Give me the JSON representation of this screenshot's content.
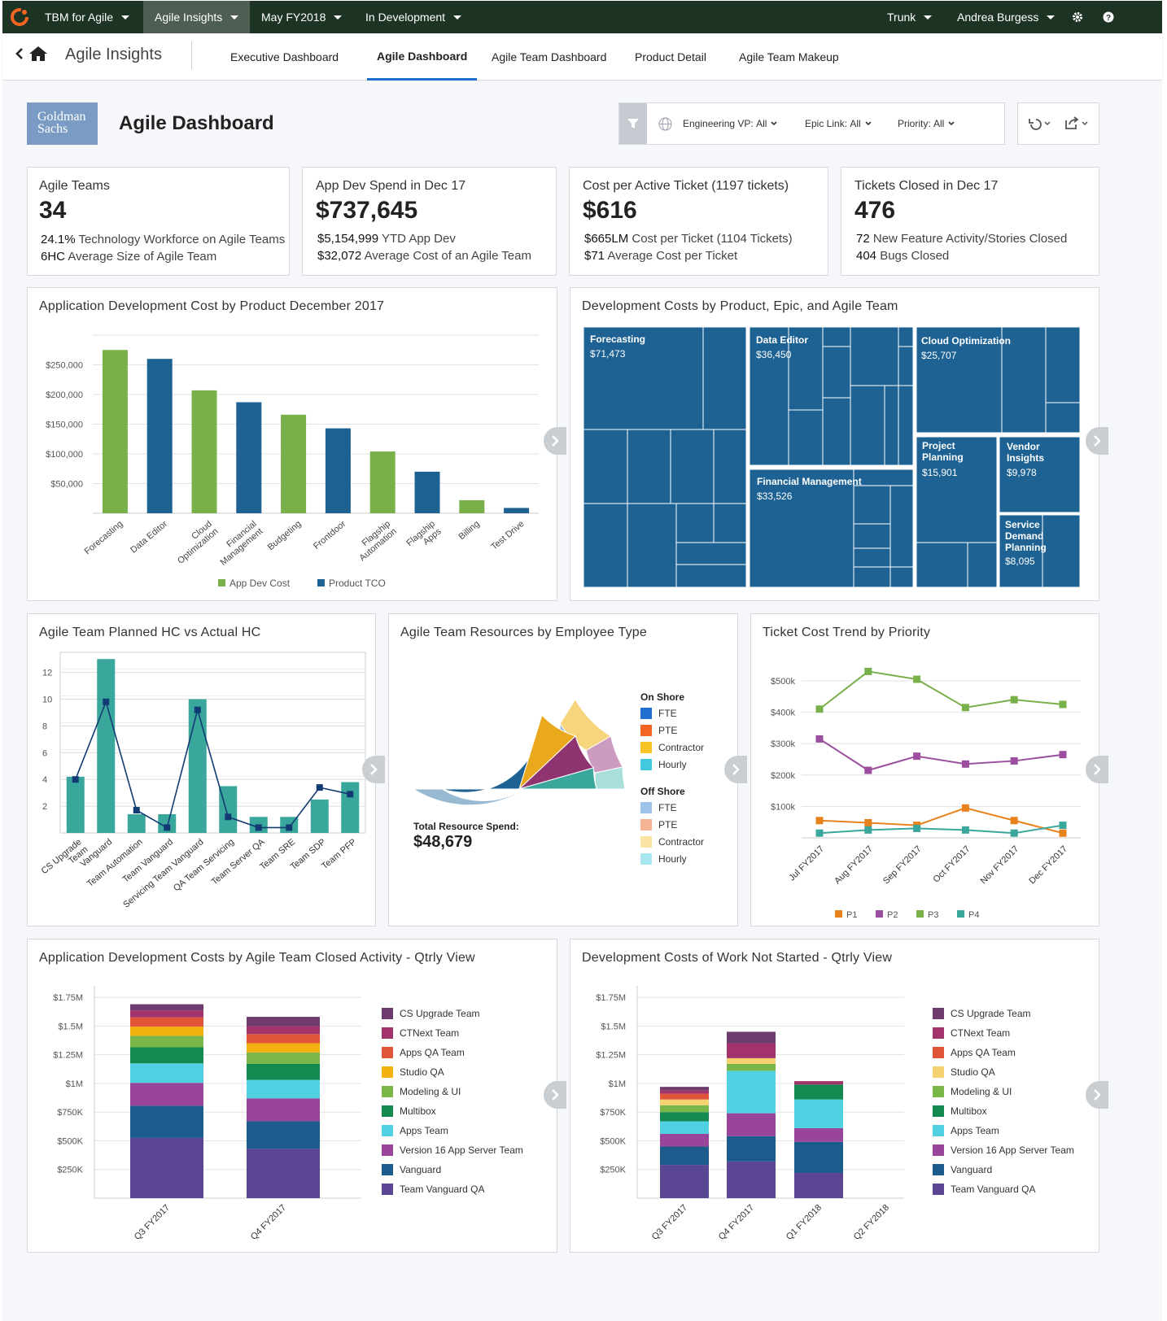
{
  "topbar": {
    "app": "TBM for Agile",
    "module": "Agile Insights",
    "period": "May FY2018",
    "scenario": "In Development",
    "branch": "Trunk",
    "user": "Andrea Burgess",
    "gear_icon": "gear-icon",
    "help_icon": "help-icon"
  },
  "subnav": {
    "title": "Agile Insights",
    "tabs": [
      "Executive Dashboard",
      "Agile Dashboard",
      "Agile Team Dashboard",
      "Product Detail",
      "Agile Team Makeup"
    ],
    "active_tab": "Agile Dashboard"
  },
  "header": {
    "logo_text_1": "Goldman",
    "logo_text_2": "Sachs",
    "title": "Agile Dashboard",
    "filters": [
      {
        "label": "Engineering VP:",
        "value": "All"
      },
      {
        "label": "Epic Link:",
        "value": "All"
      },
      {
        "label": "Priority:",
        "value": "All"
      }
    ]
  },
  "kpis": [
    {
      "label": "Agile Teams",
      "value": "34",
      "lines": [
        {
          "strong": "24.1%",
          "text": " Technology Workforce on Agile Teams"
        },
        {
          "strong": "6HC",
          "text": " Average Size of Agile Team"
        }
      ]
    },
    {
      "label": "App Dev Spend in Dec 17",
      "value": "$737,645",
      "lines": [
        {
          "strong": "$5,154,999",
          "text": " YTD App Dev"
        },
        {
          "strong": "$32,072",
          "text": " Average Cost of an Agile Team"
        }
      ]
    },
    {
      "label": "Cost per Active Ticket (1197 tickets)",
      "value": "$616",
      "lines": [
        {
          "strong": "$665LM",
          "text": " Cost per Ticket (1104 Tickets)"
        },
        {
          "strong": "$71",
          "text": " Average Cost per Ticket"
        }
      ]
    },
    {
      "label": "Tickets Closed in Dec 17",
      "value": "476",
      "lines": [
        {
          "strong": "72",
          "text": " New Feature Activity/Stories Closed"
        },
        {
          "strong": "404",
          "text": " Bugs Closed"
        }
      ]
    }
  ],
  "titles": {
    "bar": "Application Development Cost by Product December 2017",
    "treemap": "Development Costs by Product, Epic, and Agile Team",
    "hc": "Agile Team Planned HC vs Actual HC",
    "resources": "Agile Team Resources by Employee Type",
    "trend": "Ticket Cost Trend by Priority",
    "closed": "Application Development Costs by Agile Team Closed Activity - Qtrly View",
    "notstarted": "Development Costs of Work Not Started - Qtrly View"
  },
  "resources": {
    "total_label": "Total Resource Spend:",
    "total_value": "$48,679",
    "onshore_label": "On Shore",
    "offshore_label": "Off Shore",
    "onshore": [
      {
        "label": "FTE",
        "color": "#1f6fd0"
      },
      {
        "label": "PTE",
        "color": "#f26522"
      },
      {
        "label": "Contractor",
        "color": "#f7c325"
      },
      {
        "label": "Hourly",
        "color": "#42c9df"
      }
    ],
    "offshore": [
      {
        "label": "FTE",
        "color": "#9fc3e8"
      },
      {
        "label": "PTE",
        "color": "#f6b393"
      },
      {
        "label": "Contractor",
        "color": "#fbe4a3"
      },
      {
        "label": "Hourly",
        "color": "#a8e6f0"
      }
    ]
  },
  "team_legend": [
    {
      "label": "CS Upgrade Team",
      "color": "#6d3b6d"
    },
    {
      "label": "CTNext Team",
      "color": "#a3336b"
    },
    {
      "label": "Apps QA Team",
      "color": "#e0543a"
    },
    {
      "label": "Studio QA",
      "color": "#f2b10f"
    },
    {
      "label": "Modeling & UI",
      "color": "#7ab648"
    },
    {
      "label": "Multibox",
      "color": "#148a50"
    },
    {
      "label": "Apps Team",
      "color": "#4fd1e2"
    },
    {
      "label": "Version 16 App Server Team",
      "color": "#98459a"
    },
    {
      "label": "Vanguard",
      "color": "#1c5c8d"
    },
    {
      "label": "Team Vanguard QA",
      "color": "#5b4694"
    }
  ],
  "team_legend_alt": [
    {
      "label": "CS Upgrade Team",
      "color": "#6d3b6d"
    },
    {
      "label": "CTNext Team",
      "color": "#a3336b"
    },
    {
      "label": "Apps QA Team",
      "color": "#e0543a"
    },
    {
      "label": "Studio QA",
      "color": "#f6d172"
    },
    {
      "label": "Modeling & UI",
      "color": "#7ab648"
    },
    {
      "label": "Multibox",
      "color": "#148a50"
    },
    {
      "label": "Apps Team",
      "color": "#4fd1e2"
    },
    {
      "label": "Version 16 App Server Team",
      "color": "#98459a"
    },
    {
      "label": "Vanguard",
      "color": "#1c5c8d"
    },
    {
      "label": "Team Vanguard QA",
      "color": "#5b4694"
    }
  ],
  "chart_data": [
    {
      "type": "bar",
      "title": "Application Development Cost by Product December 2017",
      "categories": [
        "Forecasting",
        "Data Editor",
        "Cloud Optimization",
        "Financial Management",
        "Budgeting",
        "Frontdoor",
        "Flagship Automation",
        "Flagship Apps",
        "Billing",
        "Test Drive"
      ],
      "series": [
        {
          "name": "App Dev Cost",
          "color": "#78b04a",
          "values": [
            275000,
            null,
            207000,
            null,
            166000,
            null,
            104000,
            null,
            22000,
            null
          ]
        },
        {
          "name": "Product TCO",
          "color": "#1d6293",
          "values": [
            null,
            260000,
            null,
            187000,
            null,
            143000,
            null,
            70000,
            null,
            9000
          ]
        }
      ],
      "yticks": [
        50000,
        100000,
        150000,
        200000,
        250000
      ],
      "ytick_labels": [
        "$50,000",
        "$100,000",
        "$150,000",
        "$200,000",
        "$250,000"
      ],
      "ylim": [
        0,
        300000
      ],
      "legend": "bottom"
    },
    {
      "type": "treemap",
      "title": "Development Costs by Product, Epic, and Agile Team",
      "items": [
        {
          "label": "Forecasting",
          "value": "$71,473"
        },
        {
          "label": "Data Editor",
          "value": "$36,450"
        },
        {
          "label": "Cloud Optimization",
          "value": "$25,707"
        },
        {
          "label": "Financial Management",
          "value": "$33,526"
        },
        {
          "label": "Project Planning",
          "value": "$15,901"
        },
        {
          "label": "Vendor Insights",
          "value": "$9,978"
        },
        {
          "label": "Service Demand Planning",
          "value": "$8,095"
        }
      ]
    },
    {
      "type": "bar",
      "title": "Agile Team Planned HC vs Actual HC",
      "categories": [
        "CS Upgrade Team",
        "Vanguard",
        "Team Automation",
        "Team Vanguard",
        "Servicing Team Vanguard",
        "QA Team Servicing",
        "Team Server QA",
        "Team SRE",
        "Team SDP",
        "Team PFP"
      ],
      "series": [
        {
          "name": "Planned HC",
          "type": "bar",
          "color": "#3aa79c",
          "values": [
            4.2,
            13.0,
            1.4,
            1.4,
            10.0,
            3.5,
            1.2,
            1.2,
            2.5,
            3.8
          ]
        },
        {
          "name": "Actual HC",
          "type": "line",
          "color": "#123b73",
          "values": [
            4.0,
            9.8,
            1.7,
            0.4,
            9.2,
            1.2,
            0.4,
            0.4,
            3.4,
            2.9
          ]
        }
      ],
      "yticks": [
        2,
        4,
        6,
        8,
        10,
        12
      ],
      "ylim": [
        0,
        13.5
      ]
    },
    {
      "type": "pie",
      "title": "Agile Team Resources by Employee Type",
      "series": [
        {
          "name": "On Shore FTE",
          "value": 47,
          "color": "#1d6293"
        },
        {
          "name": "On Shore Contractor",
          "value": 13,
          "color": "#eaa81d"
        },
        {
          "name": "On Shore PTE",
          "value": 12,
          "color": "#8f3470"
        },
        {
          "name": "On Shore Hourly",
          "value": 7,
          "color": "#3aa79c"
        },
        {
          "name": "Off Shore FTE",
          "value": 61,
          "color": "#97b9d2"
        },
        {
          "name": "Off Shore Contractor",
          "value": 14,
          "color": "#f6d57c"
        },
        {
          "name": "Off Shore PTE",
          "value": 9,
          "color": "#cc9bc0"
        },
        {
          "name": "Off Shore Hourly",
          "value": 6,
          "color": "#a9dfdb"
        }
      ]
    },
    {
      "type": "line",
      "title": "Ticket Cost Trend by Priority",
      "x": [
        "Jul FY2017",
        "Aug FY2017",
        "Sep FY2017",
        "Oct FY2017",
        "Nov FY2017",
        "Dec FY2017"
      ],
      "series": [
        {
          "name": "P1",
          "color": "#e8821c",
          "values": [
            55000,
            48000,
            40000,
            95000,
            55000,
            15000
          ]
        },
        {
          "name": "P2",
          "color": "#9b4f9e",
          "values": [
            315000,
            215000,
            260000,
            235000,
            245000,
            265000
          ]
        },
        {
          "name": "P3",
          "color": "#78b04a",
          "values": [
            410000,
            530000,
            505000,
            415000,
            440000,
            425000
          ]
        },
        {
          "name": "P4",
          "color": "#3aa79c",
          "values": [
            15000,
            25000,
            30000,
            25000,
            15000,
            40000
          ]
        }
      ],
      "yticks": [
        100000,
        200000,
        300000,
        400000,
        500000
      ],
      "ytick_labels": [
        "$100k",
        "$200k",
        "$300k",
        "$400k",
        "$500k"
      ],
      "ylim": [
        0,
        570000
      ],
      "legend": "bottom"
    },
    {
      "type": "bar",
      "title": "Application Development Costs by Agile Team Closed Activity - Qtrly View",
      "stacked": true,
      "categories": [
        "Q3 FY2017",
        "Q4 FY2017"
      ],
      "series": [
        {
          "name": "Team Vanguard QA",
          "values": [
            525000,
            430000
          ]
        },
        {
          "name": "Vanguard",
          "values": [
            280000,
            240000
          ]
        },
        {
          "name": "Version 16 App Server Team",
          "values": [
            200000,
            200000
          ]
        },
        {
          "name": "Apps Team",
          "values": [
            170000,
            160000
          ]
        },
        {
          "name": "Multibox",
          "values": [
            140000,
            140000
          ]
        },
        {
          "name": "Modeling & UI",
          "values": [
            100000,
            100000
          ]
        },
        {
          "name": "Studio QA",
          "values": [
            80000,
            80000
          ]
        },
        {
          "name": "Apps QA Team",
          "values": [
            80000,
            80000
          ]
        },
        {
          "name": "CTNext Team",
          "values": [
            60000,
            70000
          ]
        },
        {
          "name": "CS Upgrade Team",
          "values": [
            55000,
            80000
          ]
        }
      ],
      "yticks": [
        250000,
        500000,
        750000,
        1000000,
        1250000,
        1500000,
        1750000
      ],
      "ytick_labels": [
        "$250K",
        "$500K",
        "$750K",
        "$1M",
        "$1.25M",
        "$1.5M",
        "$1.75M"
      ],
      "ylim": [
        0,
        1850000
      ],
      "legend": "right"
    },
    {
      "type": "bar",
      "title": "Development Costs of Work Not Started - Qtrly View",
      "stacked": true,
      "categories": [
        "Q3 FY2017",
        "Q4 FY2017",
        "Q1 FY2018",
        "Q2 FY2018"
      ],
      "series": [
        {
          "name": "Team Vanguard QA",
          "values": [
            290000,
            320000,
            220000,
            0
          ]
        },
        {
          "name": "Vanguard",
          "values": [
            160000,
            220000,
            270000,
            0
          ]
        },
        {
          "name": "Version 16 App Server Team",
          "values": [
            110000,
            200000,
            120000,
            0
          ]
        },
        {
          "name": "Apps Team",
          "values": [
            110000,
            370000,
            250000,
            0
          ]
        },
        {
          "name": "Multibox",
          "values": [
            80000,
            0,
            130000,
            0
          ]
        },
        {
          "name": "Modeling & UI",
          "values": [
            60000,
            60000,
            0,
            0
          ]
        },
        {
          "name": "Studio QA",
          "values": [
            50000,
            50000,
            0,
            0
          ]
        },
        {
          "name": "Apps QA Team",
          "values": [
            50000,
            0,
            0,
            0
          ]
        },
        {
          "name": "CTNext Team",
          "values": [
            30000,
            130000,
            30000,
            0
          ]
        },
        {
          "name": "CS Upgrade Team",
          "values": [
            30000,
            100000,
            0,
            0
          ]
        }
      ],
      "yticks": [
        250000,
        500000,
        750000,
        1000000,
        1250000,
        1500000,
        1750000
      ],
      "ytick_labels": [
        "$250K",
        "$500K",
        "$750K",
        "$1M",
        "$1.25M",
        "$1.5M",
        "$1.75M"
      ],
      "ylim": [
        0,
        1850000
      ],
      "legend": "right"
    }
  ]
}
